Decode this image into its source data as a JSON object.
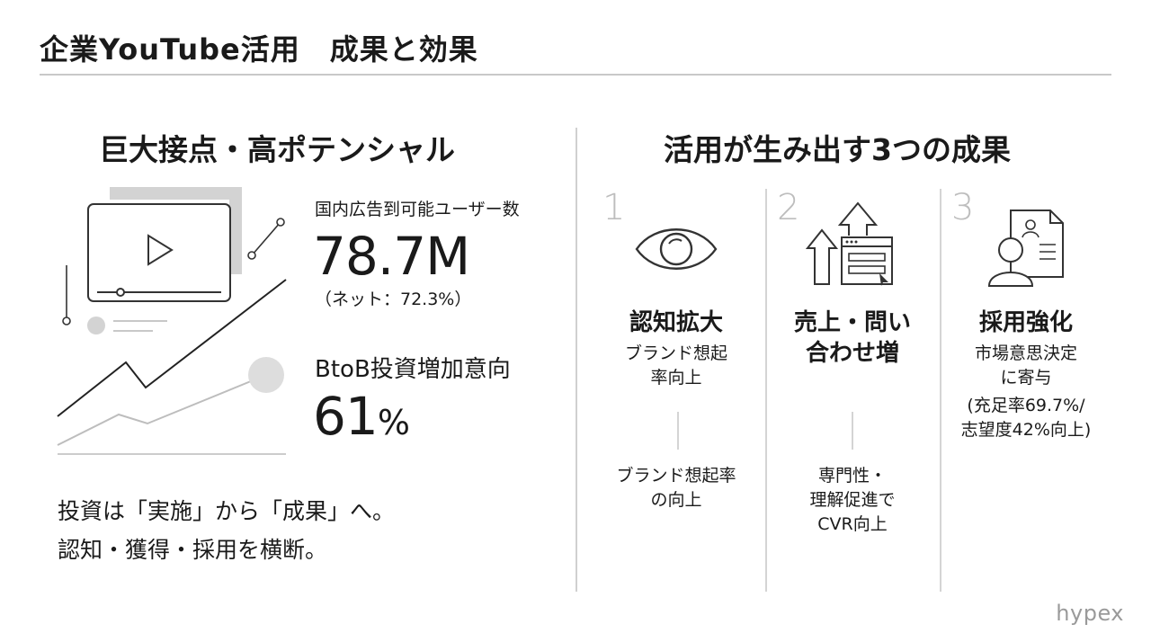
{
  "header": {
    "title": "企業YouTube活用　成果と効果"
  },
  "left": {
    "heading": "巨大接点・高ポテンシャル",
    "stat1": {
      "label": "国内広告到可能ユーザー数",
      "value": "78.7M",
      "sub": "（ネット：72.3%）"
    },
    "stat2": {
      "label": "BtoB投資増加意向",
      "value": "61",
      "unit": "%"
    },
    "message": {
      "line1": "投資は「実施」から「成果」へ。",
      "line2": "認知・獲得・採用を横断。"
    }
  },
  "right": {
    "heading": "活用が生み出す3つの成果",
    "columns": [
      {
        "number": "1",
        "icon": "eye-icon",
        "title": "認知拡大",
        "desc1": "ブランド想起",
        "desc2": "率向上",
        "bottom1": "ブランド想起率",
        "bottom2": "の向上"
      },
      {
        "number": "2",
        "icon": "sales-arrows-icon",
        "title1": "売上・問い",
        "title2": "合わせ増",
        "bottom1": "専門性・",
        "bottom2": "理解促進で",
        "bottom3": "CVR向上"
      },
      {
        "number": "3",
        "icon": "recruit-person-icon",
        "title": "採用強化",
        "desc1": "市場意思決定",
        "desc2": "に寄与",
        "desc3": "(充足率69.7%/",
        "desc4": "志望度42%向上)"
      }
    ]
  },
  "footer": {
    "logo": "hypex"
  },
  "colors": {
    "text": "#1a1a1a",
    "muted": "#bdbdbd",
    "rule": "#c8c8c8"
  }
}
